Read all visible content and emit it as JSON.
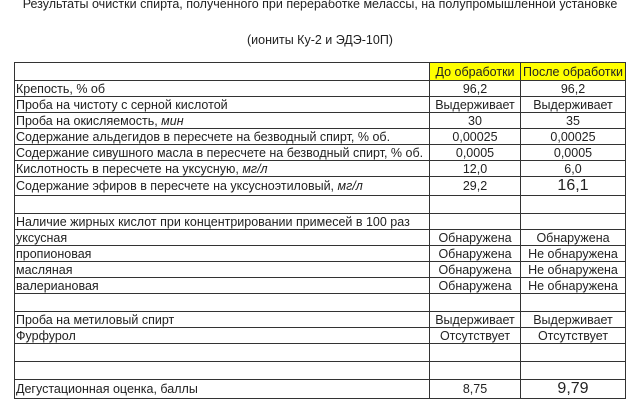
{
  "title": "Результаты очистки спирта, полученного при переработке мелассы,  на полупромышленной установке",
  "subtitle": "(иониты Ку-2 и ЭДЭ-10П)",
  "table": {
    "headers": [
      "",
      "До обработки",
      "После обработки"
    ],
    "header_highlight_color": "#ffff00",
    "rows": [
      {
        "label": "Крепость, % об",
        "unit": "",
        "before": "96,2",
        "after": "96,2"
      },
      {
        "label": "Проба на чистоту с серной кислотой",
        "unit": "",
        "before": "Выдерживает",
        "after": "Выдерживает"
      },
      {
        "label": "Проба на окисляемость, ",
        "unit": "мин",
        "before": "30",
        "after": "35"
      },
      {
        "label": "Содержание альдегидов в пересчете на безводный спирт, % об.",
        "unit": "",
        "before": "0,00025",
        "after": "0,00025"
      },
      {
        "label": "Содержание сивушного масла в пересчете на безводный спирт, % об.",
        "unit": "",
        "before": "0,0005",
        "after": "0,0005"
      },
      {
        "label": "Кислотность в пересчете на уксусную, ",
        "unit": "мг/л",
        "before": "12,0",
        "after": "6,0"
      },
      {
        "label": "Содержание эфиров в пересчете на уксусноэтиловый, ",
        "unit": "мг/л",
        "before": "29,2",
        "after": "16,1"
      },
      {
        "label": "",
        "unit": "",
        "before": "",
        "after": ""
      },
      {
        "label": "Наличие жирных кислот при концентрировании примесей в 100 раз",
        "unit": "",
        "before": "",
        "after": ""
      },
      {
        "label": "уксусная",
        "unit": "",
        "before": "Обнаружена",
        "after": "Обнаружена"
      },
      {
        "label": "пропионовая",
        "unit": "",
        "before": "Обнаружена",
        "after": "Не обнаружена"
      },
      {
        "label": "масляная",
        "unit": "",
        "before": "Обнаружена",
        "after": "Не обнаружена"
      },
      {
        "label": "валериановая",
        "unit": "",
        "before": "Обнаружена",
        "after": "Не обнаружена"
      },
      {
        "label": "",
        "unit": "",
        "before": "",
        "after": ""
      },
      {
        "label": "Проба на метиловый спирт",
        "unit": "",
        "before": "Выдерживает",
        "after": "Выдерживает"
      },
      {
        "label": "Фурфурол",
        "unit": "",
        "before": "Отсутствует",
        "after": "Отсутствует"
      },
      {
        "label": "",
        "unit": "",
        "before": "",
        "after": ""
      },
      {
        "label": "",
        "unit": "",
        "before": "",
        "after": ""
      },
      {
        "label": "Дегустационная оценка, баллы",
        "unit": "",
        "before": "8,75",
        "after": "9,79"
      }
    ]
  }
}
